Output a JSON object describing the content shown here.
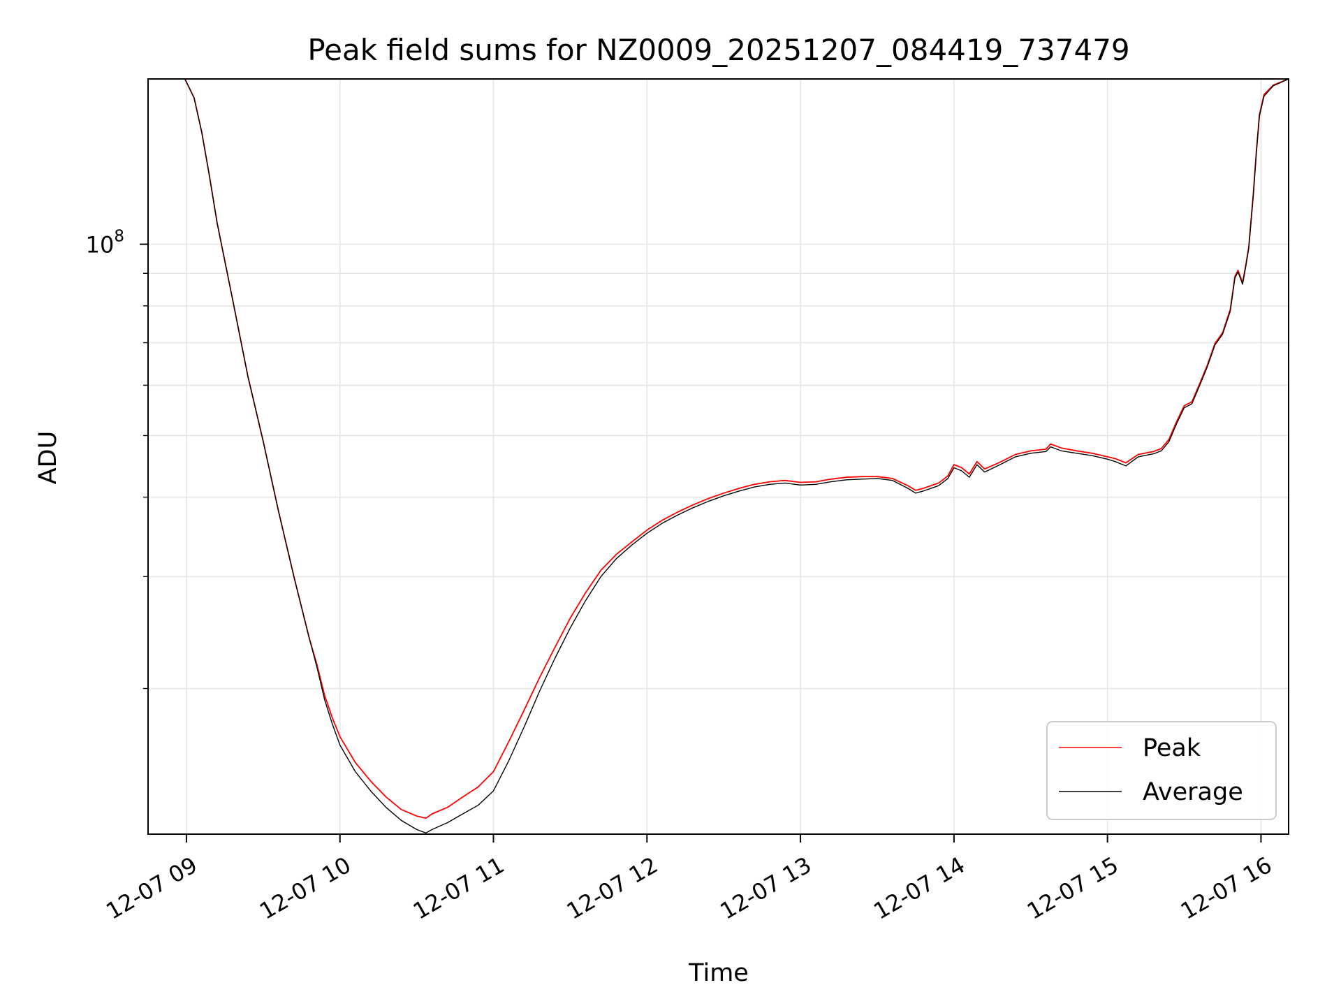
{
  "chart_data": {
    "type": "line",
    "title": "Peak field sums for NZ0009_20251207_084419_737479",
    "xlabel": "Time",
    "ylabel": "ADU",
    "yscale": "log",
    "grid": true,
    "legend_position": "lower-right",
    "x_unit": "hours since 12-07 00:00",
    "xlim": [
      8.75,
      16.18
    ],
    "ylim": [
      11800000,
      182000000
    ],
    "x_ticks": [
      {
        "value": 9,
        "label": "12-07 09"
      },
      {
        "value": 10,
        "label": "12-07 10"
      },
      {
        "value": 11,
        "label": "12-07 11"
      },
      {
        "value": 12,
        "label": "12-07 12"
      },
      {
        "value": 13,
        "label": "12-07 13"
      },
      {
        "value": 14,
        "label": "12-07 14"
      },
      {
        "value": 15,
        "label": "12-07 15"
      },
      {
        "value": 16,
        "label": "12-07 16"
      }
    ],
    "y_major_ticks": [
      {
        "value": 100000000,
        "base": "10",
        "exponent": "8"
      }
    ],
    "y_minor_ticks": [
      20000000,
      30000000,
      40000000,
      50000000,
      60000000,
      70000000,
      80000000,
      90000000,
      200000000
    ],
    "series": [
      {
        "name": "Peak",
        "color": "#ff0000",
        "points": [
          [
            8.75,
            182000000
          ],
          [
            8.99,
            182000000
          ],
          [
            9.05,
            170000000
          ],
          [
            9.1,
            150000000
          ],
          [
            9.15,
            128000000
          ],
          [
            9.2,
            108000000
          ],
          [
            9.3,
            82000000
          ],
          [
            9.4,
            62000000
          ],
          [
            9.5,
            49000000
          ],
          [
            9.6,
            38000000
          ],
          [
            9.7,
            30000000
          ],
          [
            9.8,
            24000000
          ],
          [
            9.85,
            21800000
          ],
          [
            9.9,
            19500000
          ],
          [
            9.95,
            18000000
          ],
          [
            10.0,
            16800000
          ],
          [
            10.1,
            15300000
          ],
          [
            10.2,
            14300000
          ],
          [
            10.3,
            13500000
          ],
          [
            10.4,
            12900000
          ],
          [
            10.5,
            12600000
          ],
          [
            10.56,
            12500000
          ],
          [
            10.6,
            12700000
          ],
          [
            10.7,
            13000000
          ],
          [
            10.8,
            13500000
          ],
          [
            10.9,
            14000000
          ],
          [
            11.0,
            14800000
          ],
          [
            11.1,
            16500000
          ],
          [
            11.2,
            18500000
          ],
          [
            11.3,
            20800000
          ],
          [
            11.4,
            23200000
          ],
          [
            11.5,
            25800000
          ],
          [
            11.6,
            28300000
          ],
          [
            11.7,
            30700000
          ],
          [
            11.8,
            32500000
          ],
          [
            11.9,
            34000000
          ],
          [
            12.0,
            35500000
          ],
          [
            12.1,
            36800000
          ],
          [
            12.2,
            37900000
          ],
          [
            12.3,
            38900000
          ],
          [
            12.4,
            39800000
          ],
          [
            12.5,
            40600000
          ],
          [
            12.6,
            41300000
          ],
          [
            12.7,
            41900000
          ],
          [
            12.8,
            42300000
          ],
          [
            12.9,
            42500000
          ],
          [
            13.0,
            42200000
          ],
          [
            13.1,
            42300000
          ],
          [
            13.2,
            42700000
          ],
          [
            13.3,
            43000000
          ],
          [
            13.4,
            43100000
          ],
          [
            13.5,
            43100000
          ],
          [
            13.6,
            42800000
          ],
          [
            13.7,
            41700000
          ],
          [
            13.75,
            41000000
          ],
          [
            13.8,
            41300000
          ],
          [
            13.9,
            42100000
          ],
          [
            13.96,
            43200000
          ],
          [
            14.0,
            45000000
          ],
          [
            14.05,
            44500000
          ],
          [
            14.1,
            43500000
          ],
          [
            14.15,
            45500000
          ],
          [
            14.2,
            44300000
          ],
          [
            14.3,
            45400000
          ],
          [
            14.4,
            46700000
          ],
          [
            14.5,
            47300000
          ],
          [
            14.6,
            47600000
          ],
          [
            14.63,
            48500000
          ],
          [
            14.7,
            47800000
          ],
          [
            14.8,
            47300000
          ],
          [
            14.9,
            46900000
          ],
          [
            15.0,
            46300000
          ],
          [
            15.05,
            46000000
          ],
          [
            15.12,
            45300000
          ],
          [
            15.2,
            46700000
          ],
          [
            15.3,
            47200000
          ],
          [
            15.35,
            47700000
          ],
          [
            15.4,
            49300000
          ],
          [
            15.45,
            52600000
          ],
          [
            15.5,
            55700000
          ],
          [
            15.55,
            56500000
          ],
          [
            15.6,
            60300000
          ],
          [
            15.65,
            64500000
          ],
          [
            15.7,
            69800000
          ],
          [
            15.75,
            72600000
          ],
          [
            15.8,
            79000000
          ],
          [
            15.83,
            89000000
          ],
          [
            15.85,
            91000000
          ],
          [
            15.88,
            87000000
          ],
          [
            15.9,
            92500000
          ],
          [
            15.92,
            99000000
          ],
          [
            15.95,
            120000000
          ],
          [
            15.97,
            140000000
          ],
          [
            15.99,
            160000000
          ],
          [
            16.02,
            172000000
          ],
          [
            16.08,
            178000000
          ],
          [
            16.18,
            182000000
          ]
        ]
      },
      {
        "name": "Average",
        "color": "#000000",
        "points": [
          [
            8.75,
            182000000
          ],
          [
            8.99,
            182000000
          ],
          [
            9.05,
            170000000
          ],
          [
            9.1,
            150000000
          ],
          [
            9.15,
            128000000
          ],
          [
            9.2,
            108000000
          ],
          [
            9.3,
            82000000
          ],
          [
            9.4,
            62000000
          ],
          [
            9.5,
            49000000
          ],
          [
            9.6,
            38000000
          ],
          [
            9.7,
            30000000
          ],
          [
            9.8,
            24000000
          ],
          [
            9.85,
            21600000
          ],
          [
            9.9,
            19200000
          ],
          [
            9.95,
            17600000
          ],
          [
            10.0,
            16300000
          ],
          [
            10.1,
            14800000
          ],
          [
            10.2,
            13800000
          ],
          [
            10.3,
            13000000
          ],
          [
            10.4,
            12400000
          ],
          [
            10.5,
            12000000
          ],
          [
            10.56,
            11850000
          ],
          [
            10.6,
            12000000
          ],
          [
            10.7,
            12300000
          ],
          [
            10.8,
            12700000
          ],
          [
            10.9,
            13100000
          ],
          [
            11.0,
            13800000
          ],
          [
            11.1,
            15400000
          ],
          [
            11.2,
            17400000
          ],
          [
            11.3,
            19800000
          ],
          [
            11.4,
            22300000
          ],
          [
            11.5,
            24900000
          ],
          [
            11.6,
            27500000
          ],
          [
            11.7,
            30000000
          ],
          [
            11.8,
            32000000
          ],
          [
            11.9,
            33600000
          ],
          [
            12.0,
            35100000
          ],
          [
            12.1,
            36400000
          ],
          [
            12.2,
            37500000
          ],
          [
            12.3,
            38500000
          ],
          [
            12.4,
            39400000
          ],
          [
            12.5,
            40200000
          ],
          [
            12.6,
            40900000
          ],
          [
            12.7,
            41500000
          ],
          [
            12.8,
            41900000
          ],
          [
            12.9,
            42100000
          ],
          [
            13.0,
            41800000
          ],
          [
            13.1,
            41900000
          ],
          [
            13.2,
            42300000
          ],
          [
            13.3,
            42600000
          ],
          [
            13.4,
            42700000
          ],
          [
            13.5,
            42800000
          ],
          [
            13.6,
            42500000
          ],
          [
            13.7,
            41300000
          ],
          [
            13.75,
            40600000
          ],
          [
            13.8,
            40900000
          ],
          [
            13.9,
            41700000
          ],
          [
            13.96,
            42800000
          ],
          [
            14.0,
            44500000
          ],
          [
            14.05,
            44000000
          ],
          [
            14.1,
            43000000
          ],
          [
            14.15,
            45000000
          ],
          [
            14.2,
            43800000
          ],
          [
            14.3,
            45000000
          ],
          [
            14.4,
            46300000
          ],
          [
            14.5,
            46900000
          ],
          [
            14.6,
            47200000
          ],
          [
            14.63,
            48000000
          ],
          [
            14.7,
            47300000
          ],
          [
            14.8,
            46900000
          ],
          [
            14.9,
            46500000
          ],
          [
            15.0,
            45900000
          ],
          [
            15.05,
            45500000
          ],
          [
            15.12,
            44800000
          ],
          [
            15.2,
            46300000
          ],
          [
            15.3,
            46800000
          ],
          [
            15.35,
            47300000
          ],
          [
            15.4,
            48900000
          ],
          [
            15.45,
            52200000
          ],
          [
            15.5,
            55300000
          ],
          [
            15.55,
            56100000
          ],
          [
            15.6,
            59900000
          ],
          [
            15.65,
            64100000
          ],
          [
            15.7,
            69400000
          ],
          [
            15.75,
            72200000
          ],
          [
            15.8,
            78500000
          ],
          [
            15.83,
            88500000
          ],
          [
            15.85,
            90500000
          ],
          [
            15.88,
            86500000
          ],
          [
            15.9,
            92000000
          ],
          [
            15.92,
            98500000
          ],
          [
            15.95,
            119000000
          ],
          [
            15.97,
            139000000
          ],
          [
            15.99,
            159000000
          ],
          [
            16.02,
            171000000
          ],
          [
            16.08,
            177500000
          ],
          [
            16.18,
            182000000
          ]
        ]
      }
    ]
  }
}
